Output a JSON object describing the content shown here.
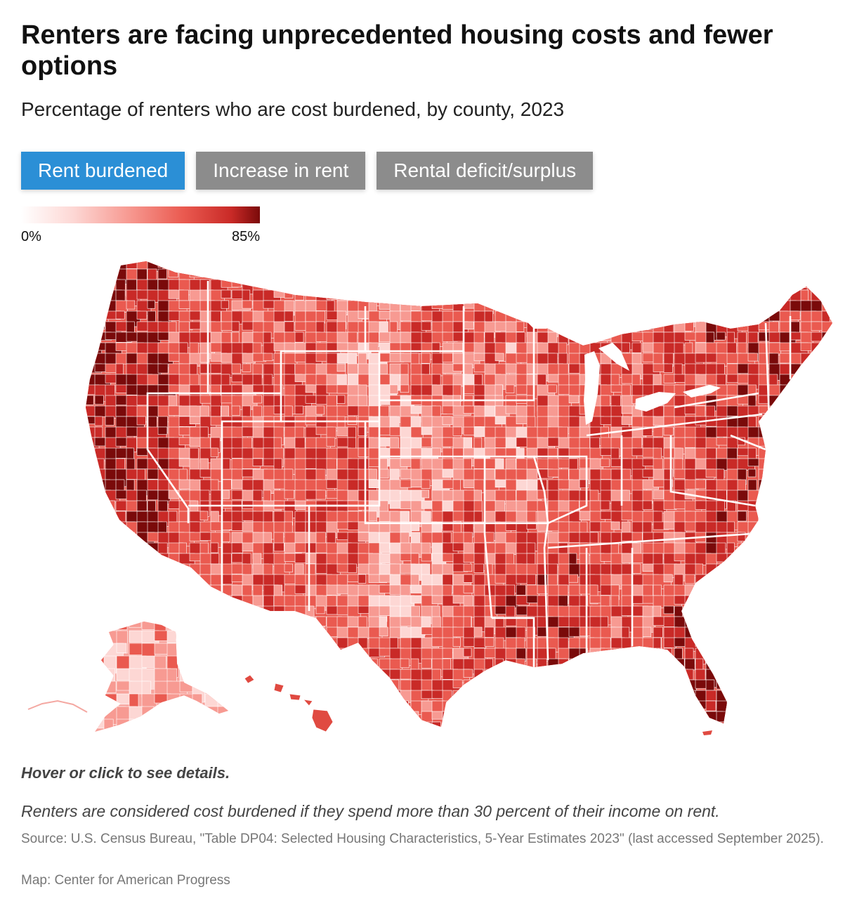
{
  "header": {
    "title": "Renters are facing unprecedented housing costs and fewer options",
    "subtitle": "Percentage of renters who are cost burdened, by county, 2023"
  },
  "tabs": [
    {
      "label": "Rent burdened",
      "active": true
    },
    {
      "label": "Increase in rent",
      "active": false
    },
    {
      "label": "Rental deficit/surplus",
      "active": false
    }
  ],
  "legend": {
    "min_label": "0%",
    "max_label": "85%",
    "range": [
      0,
      85
    ],
    "colors": [
      "#ffffff",
      "#fdd7d4",
      "#f79a92",
      "#ea5a50",
      "#c92a27",
      "#7a0a0a"
    ]
  },
  "map": {
    "type": "choropleth",
    "metric_unit": "percent",
    "colors": {
      "tab_active": "#2b8fd6",
      "tab_inactive": "#8c8c8c",
      "border": "#ffffff"
    }
  },
  "footer": {
    "hint": "Hover or click to see details.",
    "note": "Renters are considered cost burdened if they spend more than 30 percent of their income on rent.",
    "source": "Source: U.S. Census Bureau, \"Table DP04: Selected Housing Characteristics, 5-Year Estimates 2023\" (last accessed September 2025).",
    "credit": "Map: Center for American Progress"
  }
}
